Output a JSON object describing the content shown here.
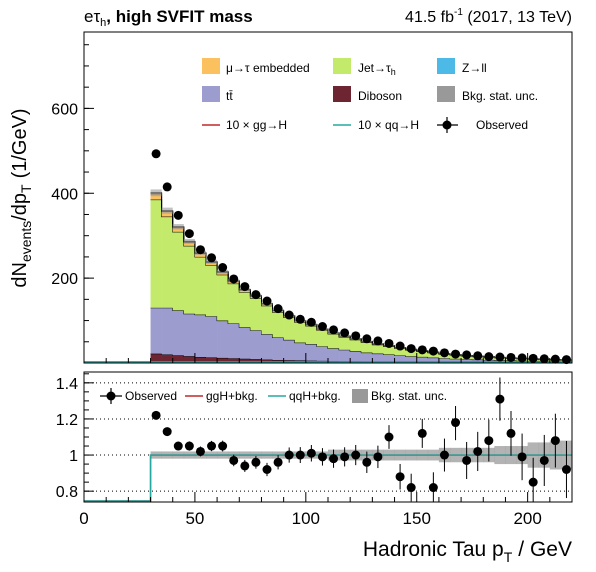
{
  "header": {
    "channel_main": "eτ",
    "channel_sub": "h",
    "title_rest": ", high SVFIT mass",
    "lumi_value": "41.5 fb",
    "lumi_exp": "-1",
    "lumi_rest": " (2017, 13 TeV)"
  },
  "axes": {
    "ylabel_main": "dN",
    "ylabel_sub1": "events",
    "ylabel_mid": "/dp",
    "ylabel_sub2": "T",
    "ylabel_unit": "(1/GeV)",
    "xlabel_main": "Hadronic Tau p",
    "xlabel_sub": "T",
    "xlabel_unit": "/ GeV",
    "x_ticks": [
      "0",
      "50",
      "100",
      "150",
      "200"
    ],
    "y_ticks_main": [
      "200",
      "400",
      "600"
    ],
    "y_ticks_ratio": [
      "0.8",
      "1",
      "1.2",
      "1.4"
    ]
  },
  "legend_main": {
    "emb": "μ→τ embedded",
    "jet_main": "Jet→τ",
    "jet_sub": "h",
    "zll": "Z→ll",
    "tt": "tt̄",
    "diboson": "Diboson",
    "stat": "Bkg. stat. unc.",
    "ggh": "10 × gg→H",
    "qqh": "10 × qq→H",
    "obs": "Observed"
  },
  "legend_ratio": {
    "obs": "Observed",
    "ggh": "ggH+bkg.",
    "qqh": "qqH+bkg.",
    "stat": "Bkg. stat. unc."
  },
  "colors": {
    "emb": "#fbc15e",
    "jet": "#c3ea6b",
    "zll": "#4db9e6",
    "tt": "#9d9ccf",
    "diboson": "#6d2532",
    "stat": "#999999",
    "ggh": "#c0282a",
    "qqh": "#25a8a2"
  },
  "chart_data": [
    {
      "type": "area",
      "stacked": true,
      "x_edges": [
        30,
        35,
        40,
        45,
        50,
        55,
        60,
        65,
        70,
        75,
        80,
        85,
        90,
        95,
        100,
        105,
        110,
        115,
        120,
        125,
        130,
        135,
        140,
        145,
        150,
        155,
        160,
        165,
        170,
        175,
        180,
        185,
        190,
        195,
        200,
        205,
        210,
        215,
        220
      ],
      "series": [
        {
          "name": "Diboson",
          "values": [
            22,
            20,
            18,
            16,
            14,
            13,
            12,
            11,
            10,
            9,
            8,
            7,
            6.5,
            6,
            5.5,
            5,
            4.5,
            4,
            3.8,
            3.5,
            3.2,
            3,
            2.8,
            2.6,
            2.4,
            2.2,
            2,
            1.8,
            1.7,
            1.6,
            1.5,
            1.4,
            1.3,
            1.2,
            1.1,
            1,
            1,
            0.9
          ]
        },
        {
          "name": "tt̄",
          "values": [
            108,
            110,
            106,
            100,
            100,
            97,
            88,
            82,
            74,
            68,
            60,
            53,
            48,
            42,
            39,
            34,
            30,
            27,
            24,
            21,
            19,
            17,
            15,
            13,
            12,
            10.5,
            9,
            8,
            7,
            6.5,
            5.8,
            5.2,
            4.7,
            4.2,
            3.8,
            3.4,
            3,
            2.8
          ]
        },
        {
          "name": "Jet→τh",
          "values": [
            255,
            215,
            185,
            160,
            136,
            120,
            108,
            94,
            83,
            76,
            67,
            60,
            53,
            48,
            43,
            38,
            34,
            30,
            27,
            24,
            21,
            19,
            17,
            15,
            13,
            11.5,
            10,
            9,
            8,
            7,
            6.4,
            5.7,
            5,
            4.6,
            4.1,
            3.7,
            3.3,
            3
          ]
        },
        {
          "name": "μ→τ embedded",
          "values": [
            14,
            12,
            10,
            9,
            8,
            7,
            6,
            5.5,
            5,
            4.5,
            4,
            3.5,
            3.2,
            3,
            2.8,
            2.5,
            2.3,
            2.1,
            1.9,
            1.8,
            1.6,
            1.5,
            1.4,
            1.3,
            1.2,
            1.1,
            1,
            0.9,
            0.8,
            0.8,
            0.7,
            0.7,
            0.6,
            0.6,
            0.5,
            0.5,
            0.5,
            0.4
          ]
        },
        {
          "name": "Z→ll",
          "values": [
            2,
            2,
            2,
            1.5,
            1.5,
            1.5,
            1,
            1,
            1,
            1,
            1,
            0.8,
            0.8,
            0.7,
            0.7,
            0.6,
            0.6,
            0.5,
            0.5,
            0.5,
            0.4,
            0.4,
            0.4,
            0.3,
            0.3,
            0.3,
            0.3,
            0.2,
            0.2,
            0.2,
            0.2,
            0.2,
            0.2,
            0.2,
            0.1,
            0.1,
            0.1,
            0.1
          ]
        }
      ],
      "observed": {
        "x": [
          32.5,
          37.5,
          42.5,
          47.5,
          52.5,
          57.5,
          62.5,
          67.5,
          72.5,
          77.5,
          82.5,
          87.5,
          92.5,
          97.5,
          102.5,
          107.5,
          112.5,
          117.5,
          122.5,
          127.5,
          132.5,
          137.5,
          142.5,
          147.5,
          152.5,
          157.5,
          162.5,
          167.5,
          172.5,
          177.5,
          182.5,
          187.5,
          192.5,
          197.5,
          202.5,
          207.5,
          212.5,
          217.5
        ],
        "y": [
          493,
          415,
          348,
          305,
          267,
          248,
          225,
          198,
          180,
          161,
          146,
          128,
          113,
          103,
          96,
          86,
          78,
          71,
          64,
          57,
          52,
          46,
          40,
          34,
          31,
          28,
          24,
          21,
          19,
          17,
          15,
          14,
          13,
          12,
          11,
          10,
          9,
          8
        ]
      },
      "xlim": [
        0,
        220
      ],
      "ylim": [
        0,
        780
      ],
      "legend_position": "top"
    },
    {
      "type": "scatter",
      "x": [
        32.5,
        37.5,
        42.5,
        47.5,
        52.5,
        57.5,
        62.5,
        67.5,
        72.5,
        77.5,
        82.5,
        87.5,
        92.5,
        97.5,
        102.5,
        107.5,
        112.5,
        117.5,
        122.5,
        127.5,
        132.5,
        137.5,
        142.5,
        147.5,
        152.5,
        157.5,
        162.5,
        167.5,
        172.5,
        177.5,
        182.5,
        187.5,
        192.5,
        197.5,
        202.5,
        207.5,
        212.5,
        217.5
      ],
      "y": [
        1.22,
        1.13,
        1.05,
        1.05,
        1.02,
        1.05,
        1.05,
        0.97,
        0.94,
        0.96,
        0.92,
        0.96,
        1.0,
        1.0,
        1.01,
        0.99,
        0.98,
        0.99,
        1.0,
        0.96,
        0.99,
        1.1,
        0.88,
        0.82,
        1.12,
        0.82,
        1.0,
        1.18,
        0.97,
        1.02,
        1.08,
        1.31,
        1.12,
        0.99,
        0.85,
        0.97,
        1.08,
        0.92
      ],
      "stat_band_halfwidth": [
        0.02,
        0.02,
        0.02,
        0.02,
        0.02,
        0.02,
        0.02,
        0.02,
        0.02,
        0.02,
        0.02,
        0.02,
        0.02,
        0.02,
        0.02,
        0.02,
        0.03,
        0.03,
        0.03,
        0.03,
        0.03,
        0.03,
        0.03,
        0.03,
        0.03,
        0.03,
        0.04,
        0.04,
        0.04,
        0.04,
        0.04,
        0.05,
        0.05,
        0.05,
        0.07,
        0.07,
        0.08,
        0.08
      ],
      "xlim": [
        0,
        220
      ],
      "ylim": [
        0.74,
        1.46
      ],
      "grid": true
    }
  ]
}
